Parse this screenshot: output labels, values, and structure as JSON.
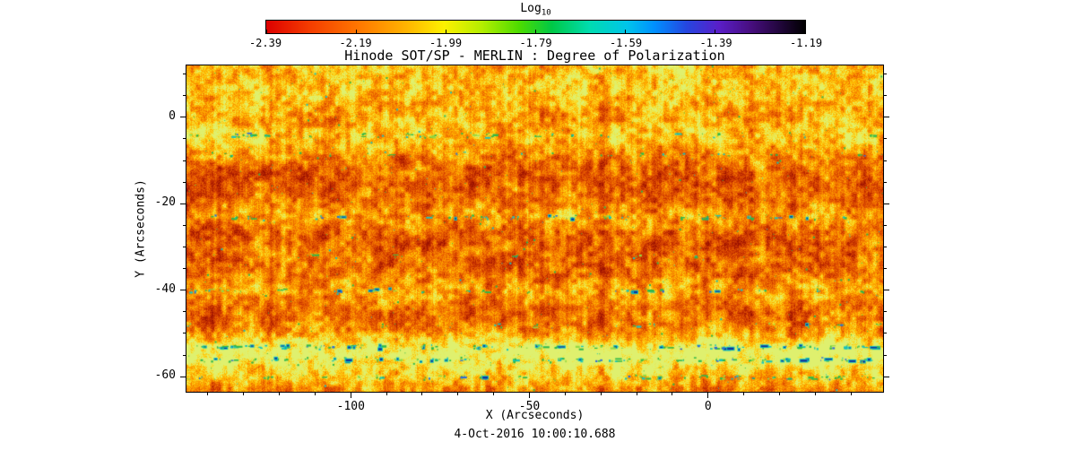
{
  "chart_data": {
    "type": "heatmap",
    "title": "Hinode SOT/SP - MERLIN : Degree of Polarization",
    "xlabel": "X (Arcseconds)",
    "ylabel": "Y (Arcseconds)",
    "timestamp": "4-Oct-2016 10:00:10.688",
    "xlim": [
      -146,
      49
    ],
    "ylim": [
      -63.5,
      12
    ],
    "x_ticks": [
      {
        "v": -100,
        "label": "-100"
      },
      {
        "v": -50,
        "label": "-50"
      },
      {
        "v": 0,
        "label": "0"
      }
    ],
    "x_minor_step": 10,
    "y_ticks": [
      {
        "v": 0,
        "label": "0"
      },
      {
        "v": -20,
        "label": "-20"
      },
      {
        "v": -40,
        "label": "-40"
      },
      {
        "v": -60,
        "label": "-60"
      }
    ],
    "y_minor_step": 5,
    "colorbar": {
      "label": "Log",
      "label_sub": "10",
      "min": -2.39,
      "max": -1.19,
      "ticks": [
        -2.39,
        -2.19,
        -1.99,
        -1.79,
        -1.59,
        -1.39,
        -1.19
      ],
      "tick_labels": [
        "-2.39",
        "-2.19",
        "-1.99",
        "-1.79",
        "-1.59",
        "-1.39",
        "-1.19"
      ],
      "gradient": [
        {
          "p": 0.0,
          "c": "#dd0000"
        },
        {
          "p": 0.08,
          "c": "#f43c00"
        },
        {
          "p": 0.17,
          "c": "#ff7600"
        },
        {
          "p": 0.26,
          "c": "#ffb400"
        },
        {
          "p": 0.33,
          "c": "#fdf100"
        },
        {
          "p": 0.4,
          "c": "#b4ee00"
        },
        {
          "p": 0.47,
          "c": "#4cdc00"
        },
        {
          "p": 0.53,
          "c": "#00c846"
        },
        {
          "p": 0.6,
          "c": "#00dcb0"
        },
        {
          "p": 0.67,
          "c": "#00c4ea"
        },
        {
          "p": 0.72,
          "c": "#0090ff"
        },
        {
          "p": 0.78,
          "c": "#2546e0"
        },
        {
          "p": 0.84,
          "c": "#5a1ec8"
        },
        {
          "p": 0.9,
          "c": "#470e7e"
        },
        {
          "p": 0.96,
          "c": "#1c0532"
        },
        {
          "p": 1.0,
          "c": "#000000"
        }
      ]
    },
    "field": {
      "seed": 20161004,
      "cluster_spacing": 19,
      "scatter_density": 0.0018,
      "ramp": [
        [
          0,
          "#991000"
        ],
        [
          0.2,
          "#c63000"
        ],
        [
          0.4,
          "#e85c00"
        ],
        [
          0.58,
          "#f98a00"
        ],
        [
          0.74,
          "#ffb900"
        ],
        [
          0.88,
          "#f8e030"
        ],
        [
          1,
          "#dff06e"
        ]
      ],
      "speckle_colors": {
        "green": "#2db84a",
        "bright": "#93d943",
        "cyan": "#16c4bd",
        "blue": "#2f6cd6",
        "dark": "#112f9a"
      },
      "top_bright": {
        "y": 8,
        "sigma": 7,
        "amount": 0.3
      },
      "dark_bands": [
        {
          "y": -14,
          "sigma": 4,
          "amount": 0.1
        },
        {
          "y": -31,
          "sigma": 5,
          "amount": 0.12
        },
        {
          "y": -47,
          "sigma": 3,
          "amount": 0.08
        }
      ],
      "speckle_rows": [
        {
          "y": -4,
          "density": 0.6,
          "cyan": 0.22,
          "dark": 0.04,
          "glow": 0.45
        },
        {
          "y": -8.5,
          "density": 0.3,
          "cyan": 0.12,
          "dark": 0,
          "glow": 0.25
        },
        {
          "y": -23,
          "density": 0.5,
          "cyan": 0.28,
          "dark": 0.07,
          "glow": 0.4
        },
        {
          "y": -32,
          "density": 0.2,
          "cyan": 0.12,
          "dark": 0,
          "glow": 0.18
        },
        {
          "y": -40,
          "density": 0.45,
          "cyan": 0.28,
          "dark": 0.09,
          "glow": 0.38
        },
        {
          "y": -48,
          "density": 0.25,
          "cyan": 0.15,
          "dark": 0.02,
          "glow": 0.22
        },
        {
          "y": -53,
          "density": 0.9,
          "cyan": 0.3,
          "dark": 0.18,
          "glow": 0.75
        },
        {
          "y": -56,
          "density": 0.8,
          "cyan": 0.28,
          "dark": 0.14,
          "glow": 0.65
        },
        {
          "y": -60,
          "density": 0.55,
          "cyan": 0.2,
          "dark": 0.05,
          "glow": 0.45
        }
      ]
    }
  }
}
